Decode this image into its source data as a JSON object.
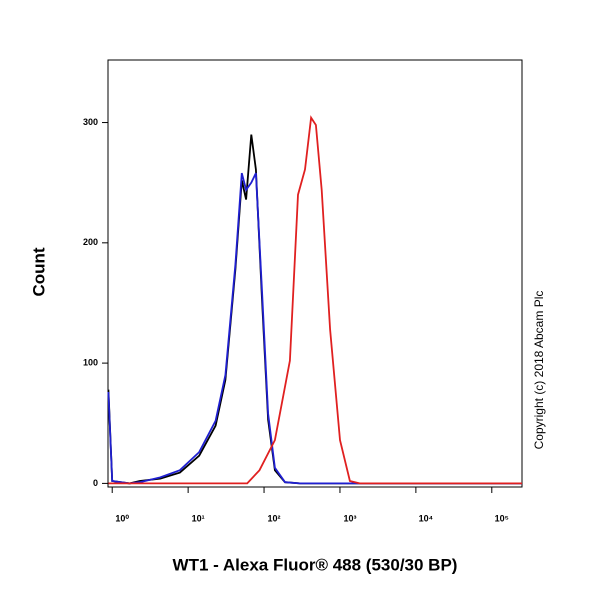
{
  "chart_data": {
    "type": "line",
    "x_label": "WT1 - Alexa Fluor® 488 (530/30 BP)",
    "y_label": "Count",
    "annotation": "Copyright (c) 2018 Abcam Plc",
    "log_x": true,
    "xlim": [
      0.88,
      250000
    ],
    "xticks": [
      {
        "value": 1,
        "label": "10⁰"
      },
      {
        "value": 10,
        "label": "10¹"
      },
      {
        "value": 100,
        "label": "10²"
      },
      {
        "value": 1000,
        "label": "10³"
      },
      {
        "value": 10000,
        "label": "10⁴"
      },
      {
        "value": 100000,
        "label": "10⁵"
      }
    ],
    "ylim": [
      -3,
      352
    ],
    "yticks": [
      0,
      100,
      200,
      300
    ],
    "series": [
      {
        "color": "#000000",
        "x": [
          0.89,
          1,
          1.7,
          2.3,
          4.3,
          7.8,
          14,
          23,
          31,
          42,
          51,
          58,
          68,
          78,
          94,
          113,
          139,
          189,
          297,
          250000
        ],
        "values": [
          78,
          2,
          0,
          2,
          4,
          9,
          23,
          48,
          86,
          178,
          252,
          236,
          290,
          261,
          153,
          53,
          11,
          1,
          0,
          0
        ]
      },
      {
        "color": "#1f1fd0",
        "x": [
          0.89,
          1,
          1.7,
          2.3,
          4.3,
          7.8,
          14,
          23,
          31,
          42,
          51,
          58,
          68,
          78,
          94,
          113,
          139,
          189,
          297,
          250000
        ],
        "values": [
          76,
          2,
          0,
          1,
          5,
          11,
          26,
          52,
          90,
          182,
          258,
          244,
          250,
          258,
          160,
          58,
          13,
          1,
          0,
          0
        ]
      },
      {
        "color": "#e02020",
        "x": [
          0.89,
          60,
          87,
          139,
          219,
          280,
          346,
          417,
          482,
          575,
          741,
          1000,
          1350,
          1820,
          250000
        ],
        "values": [
          0,
          0,
          11,
          36,
          102,
          240,
          261,
          304,
          298,
          244,
          128,
          36,
          2,
          0,
          0
        ]
      }
    ]
  }
}
